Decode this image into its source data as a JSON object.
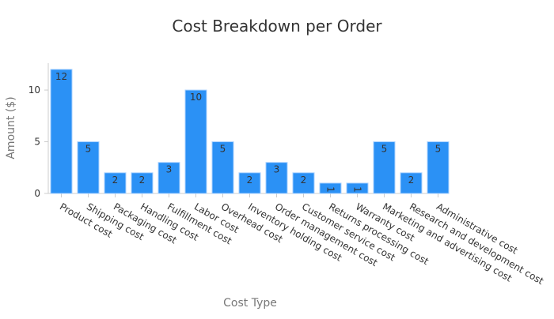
{
  "chart_data": {
    "type": "bar",
    "title": "Cost Breakdown per Order",
    "xlabel": "Cost Type",
    "ylabel": "Amount ($)",
    "ylim": [
      0,
      12.6
    ],
    "yticks": [
      0,
      5,
      10
    ],
    "bar_color": "#2b91f5",
    "bar_edge_color": "#a8d1ff",
    "grid": false,
    "categories": [
      "Product cost",
      "Shipping cost",
      "Packaging cost",
      "Handling cost",
      "Fulfillment cost",
      "Labor cost",
      "Overhead cost",
      "Inventory holding cost",
      "Order management cost",
      "Customer service cost",
      "Returns processing cost",
      "Warranty cost",
      "Marketing and advertising cost",
      "Research and development cost",
      "Administrative cost"
    ],
    "values": [
      12,
      5,
      2,
      2,
      3,
      10,
      5,
      2,
      3,
      2,
      1,
      1,
      5,
      2,
      5
    ]
  }
}
